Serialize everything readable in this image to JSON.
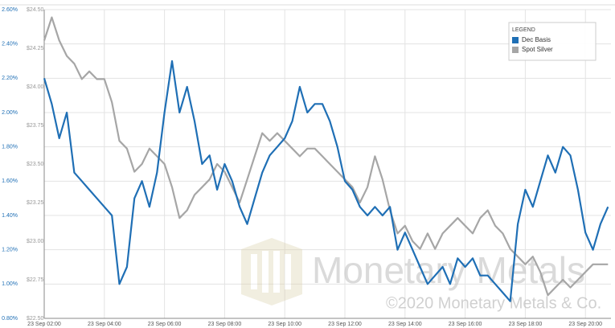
{
  "chart_data": {
    "type": "line",
    "x": [
      2.0,
      2.25,
      2.5,
      2.75,
      3.0,
      3.25,
      3.5,
      3.75,
      4.0,
      4.25,
      4.5,
      4.75,
      5.0,
      5.25,
      5.5,
      5.75,
      6.0,
      6.25,
      6.5,
      6.75,
      7.0,
      7.25,
      7.5,
      7.75,
      8.0,
      8.25,
      8.5,
      8.75,
      9.0,
      9.25,
      9.5,
      9.75,
      10.0,
      10.25,
      10.5,
      10.75,
      11.0,
      11.25,
      11.5,
      11.75,
      12.0,
      12.25,
      12.5,
      12.75,
      13.0,
      13.25,
      13.5,
      13.75,
      14.0,
      14.25,
      14.5,
      14.75,
      15.0,
      15.25,
      15.5,
      15.75,
      16.0,
      16.25,
      16.5,
      16.75,
      17.0,
      17.25,
      17.5,
      17.75,
      18.0,
      18.25,
      18.5,
      18.75,
      19.0,
      19.25,
      19.5,
      19.75,
      20.0,
      20.25,
      20.5,
      20.75
    ],
    "series": [
      {
        "name": "Dec Basis",
        "color": "#1f6fb5",
        "values": [
          2.2,
          2.05,
          1.85,
          2.0,
          1.65,
          1.6,
          1.55,
          1.5,
          1.45,
          1.4,
          1.0,
          1.1,
          1.5,
          1.6,
          1.45,
          1.65,
          2.0,
          2.3,
          2.0,
          2.15,
          1.95,
          1.7,
          1.75,
          1.55,
          1.7,
          1.6,
          1.45,
          1.35,
          1.5,
          1.65,
          1.75,
          1.8,
          1.85,
          1.95,
          2.15,
          2.0,
          2.05,
          2.05,
          1.95,
          1.8,
          1.6,
          1.55,
          1.45,
          1.4,
          1.45,
          1.4,
          1.45,
          1.2,
          1.3,
          1.2,
          1.1,
          1.0,
          1.05,
          1.1,
          1.0,
          1.15,
          1.1,
          1.15,
          1.05,
          1.05,
          1.0,
          0.95,
          0.9,
          1.35,
          1.55,
          1.45,
          1.6,
          1.75,
          1.65,
          1.8,
          1.75,
          1.55,
          1.3,
          1.2,
          1.35,
          1.45
        ]
      },
      {
        "name": "Spot Silver",
        "color": "#a6a6a6",
        "axis": "y2",
        "values": [
          24.3,
          24.45,
          24.3,
          24.2,
          24.15,
          24.05,
          24.1,
          24.05,
          24.05,
          23.9,
          23.65,
          23.6,
          23.45,
          23.5,
          23.6,
          23.55,
          23.5,
          23.35,
          23.15,
          23.2,
          23.3,
          23.35,
          23.4,
          23.5,
          23.45,
          23.35,
          23.25,
          23.4,
          23.55,
          23.7,
          23.65,
          23.7,
          23.65,
          23.6,
          23.55,
          23.6,
          23.6,
          23.55,
          23.5,
          23.45,
          23.4,
          23.35,
          23.25,
          23.35,
          23.55,
          23.4,
          23.2,
          23.05,
          23.1,
          23.0,
          22.95,
          23.05,
          22.95,
          23.05,
          23.1,
          23.15,
          23.1,
          23.05,
          23.15,
          23.2,
          23.1,
          23.05,
          22.95,
          22.9,
          22.85,
          22.9,
          22.8,
          22.65,
          22.7,
          22.75,
          22.7,
          22.75,
          22.8,
          22.85,
          22.85,
          22.85
        ]
      }
    ],
    "xlim": [
      2,
      20.85
    ],
    "xticks": [
      {
        "value": 2,
        "label": "23 Sep 02:00"
      },
      {
        "value": 4,
        "label": "23 Sep 04:00"
      },
      {
        "value": 6,
        "label": "23 Sep 06:00"
      },
      {
        "value": 8,
        "label": "23 Sep 08:00"
      },
      {
        "value": 10,
        "label": "23 Sep 10:00"
      },
      {
        "value": 12,
        "label": "23 Sep 12:00"
      },
      {
        "value": 14,
        "label": "23 Sep 14:00"
      },
      {
        "value": 16,
        "label": "23 Sep 16:00"
      },
      {
        "value": 18,
        "label": "23 Sep 18:00"
      },
      {
        "value": 20,
        "label": "23 Sep 20:00"
      }
    ],
    "ylim": [
      0.8,
      2.6
    ],
    "yticks": [
      {
        "value": 0.8,
        "label": "0.80%"
      },
      {
        "value": 1.0,
        "label": "1.00%"
      },
      {
        "value": 1.2,
        "label": "1.20%"
      },
      {
        "value": 1.4,
        "label": "1.40%"
      },
      {
        "value": 1.6,
        "label": "1.60%"
      },
      {
        "value": 1.8,
        "label": "1.80%"
      },
      {
        "value": 2.0,
        "label": "2.00%"
      },
      {
        "value": 2.2,
        "label": "2.20%"
      },
      {
        "value": 2.4,
        "label": "2.40%"
      },
      {
        "value": 2.6,
        "label": "2.60%"
      }
    ],
    "y2lim": [
      22.5,
      24.5
    ],
    "y2ticks": [
      {
        "value": 22.5,
        "label": "$22.50"
      },
      {
        "value": 22.75,
        "label": "$22.75"
      },
      {
        "value": 23.0,
        "label": "$23.00"
      },
      {
        "value": 23.25,
        "label": "$23.25"
      },
      {
        "value": 23.5,
        "label": "$23.50"
      },
      {
        "value": 23.75,
        "label": "$23.75"
      },
      {
        "value": 24.0,
        "label": "$24.00"
      },
      {
        "value": 24.25,
        "label": "$24.25"
      },
      {
        "value": 24.5,
        "label": "$24.50"
      }
    ],
    "grid": true,
    "legend": "top-right",
    "legend_title": "LEGEND",
    "annotations": [
      "Monetary Metals",
      "©2020 Monetary Metals & Co."
    ]
  }
}
